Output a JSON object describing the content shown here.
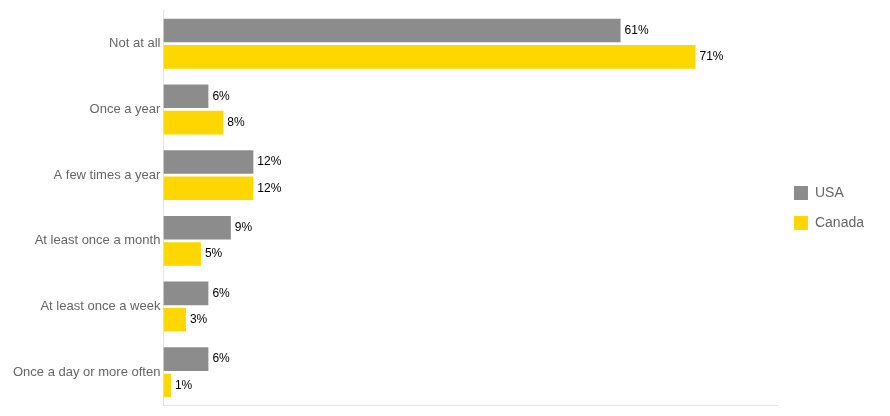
{
  "chart_data": {
    "type": "bar",
    "orientation": "horizontal",
    "categories": [
      "Not at all",
      "Once a year",
      "A few times a year",
      "At least once a month",
      "At least once a week",
      "Once a day or more often"
    ],
    "series": [
      {
        "name": "USA",
        "color": "#8C8C8C",
        "values": [
          61,
          6,
          12,
          9,
          6,
          6
        ],
        "value_labels": [
          "61%",
          "6%",
          "12%",
          "9%",
          "6%",
          "6%"
        ]
      },
      {
        "name": "Canada",
        "color": "#FFD700",
        "values": [
          71,
          8,
          12,
          5,
          3,
          1
        ],
        "value_labels": [
          "71%",
          "8%",
          "12%",
          "5%",
          "3%",
          "1%"
        ]
      }
    ],
    "xlim": [
      0,
      82
    ],
    "grid": false,
    "legend": "right",
    "data_labels": true,
    "tick_labels": "y"
  }
}
